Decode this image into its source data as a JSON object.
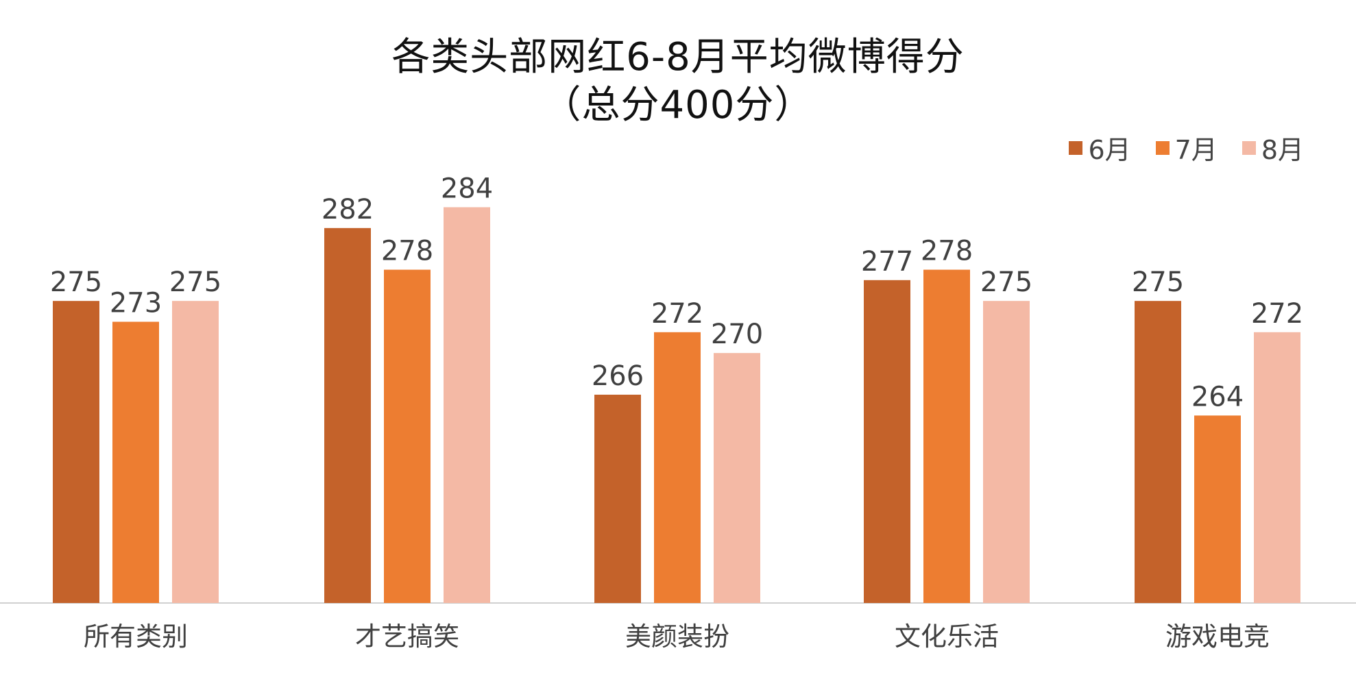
{
  "chart_data": {
    "type": "bar",
    "title": "各类头部网红6-8月平均微博得分",
    "subtitle": "（总分400分）",
    "categories": [
      "所有类别",
      "才艺搞笑",
      "美颜装扮",
      "文化乐活",
      "游戏电竞"
    ],
    "series": [
      {
        "name": "6月",
        "color": "#C4622A",
        "values": [
          275,
          282,
          266,
          277,
          275
        ]
      },
      {
        "name": "7月",
        "color": "#ED7D31",
        "values": [
          273,
          278,
          272,
          278,
          264
        ]
      },
      {
        "name": "8月",
        "color": "#F4B9A5",
        "values": [
          275,
          284,
          270,
          275,
          272
        ]
      }
    ],
    "ylim": [
      246,
      286
    ],
    "grid": false,
    "legend_position": "top-right",
    "data_labels": true
  }
}
